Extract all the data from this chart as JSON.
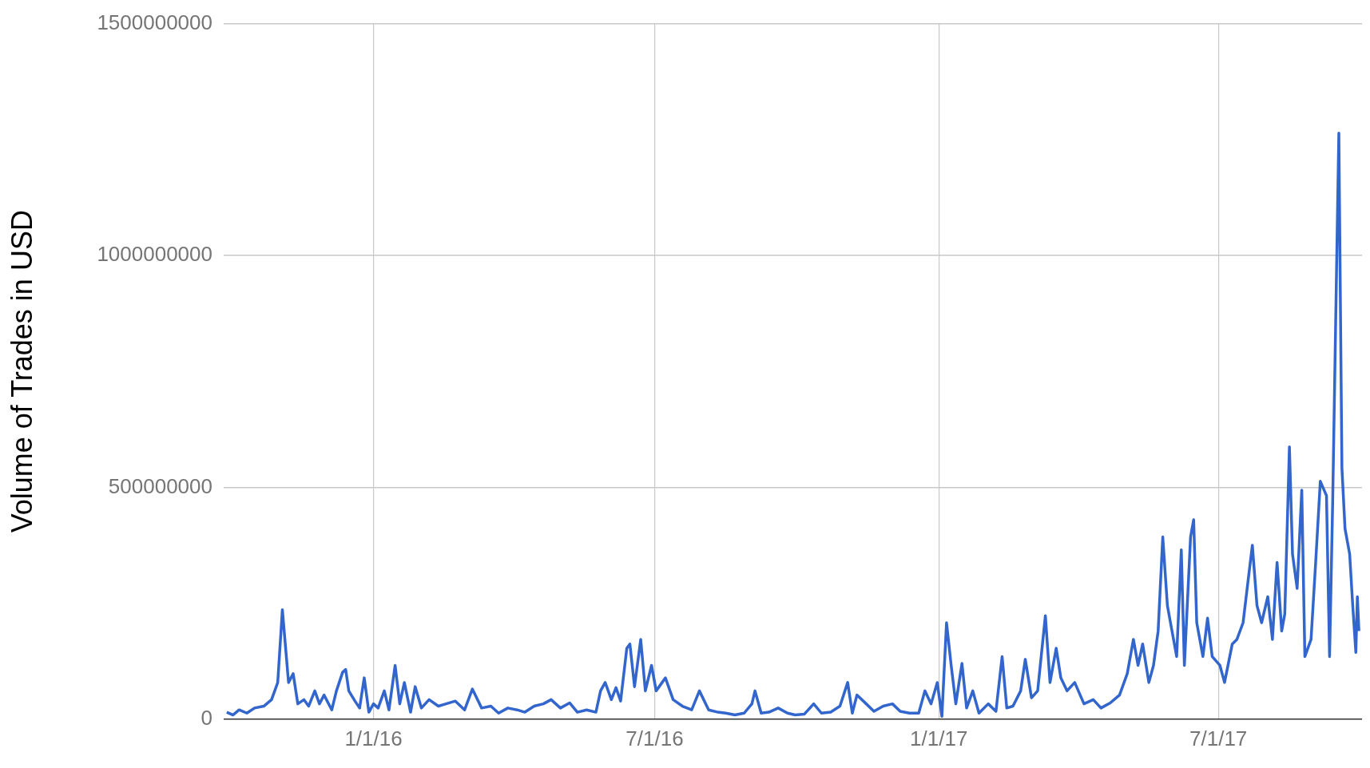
{
  "chart_data": {
    "type": "line",
    "ylabel": "Volume of Trades in USD",
    "grid": true,
    "legend": false,
    "marker": "none",
    "line_style": "solid",
    "xlim": [
      "2015-09-26",
      "2017-10-02"
    ],
    "xticks": [
      {
        "value": "2016-01-01",
        "label": "1/1/16"
      },
      {
        "value": "2016-07-01",
        "label": "7/1/16"
      },
      {
        "value": "2017-01-01",
        "label": "1/1/17"
      },
      {
        "value": "2017-07-01",
        "label": "7/1/17"
      }
    ],
    "ylim": [
      0,
      1500000000
    ],
    "yticks": [
      0,
      500000000,
      1000000000,
      1500000000
    ],
    "series": [
      {
        "color": "#3366cc",
        "x": [
          "2015-09-28",
          "2015-10-02",
          "2015-10-06",
          "2015-10-11",
          "2015-10-16",
          "2015-10-22",
          "2015-10-27",
          "2015-10-31",
          "2015-11-03",
          "2015-11-07",
          "2015-11-10",
          "2015-11-13",
          "2015-11-17",
          "2015-11-20",
          "2015-11-24",
          "2015-11-27",
          "2015-11-30",
          "2015-12-05",
          "2015-12-08",
          "2015-12-12",
          "2015-12-14",
          "2015-12-16",
          "2015-12-20",
          "2015-12-23",
          "2015-12-26",
          "2015-12-29",
          "2016-01-01",
          "2016-01-04",
          "2016-01-08",
          "2016-01-11",
          "2016-01-15",
          "2016-01-18",
          "2016-01-21",
          "2016-01-25",
          "2016-01-28",
          "2016-02-01",
          "2016-02-06",
          "2016-02-12",
          "2016-02-17",
          "2016-02-23",
          "2016-02-29",
          "2016-03-05",
          "2016-03-11",
          "2016-03-17",
          "2016-03-22",
          "2016-03-28",
          "2016-04-03",
          "2016-04-08",
          "2016-04-14",
          "2016-04-20",
          "2016-04-25",
          "2016-05-01",
          "2016-05-07",
          "2016-05-12",
          "2016-05-18",
          "2016-05-24",
          "2016-05-27",
          "2016-05-30",
          "2016-06-03",
          "2016-06-06",
          "2016-06-09",
          "2016-06-13",
          "2016-06-15",
          "2016-06-18",
          "2016-06-22",
          "2016-06-25",
          "2016-06-29",
          "2016-07-02",
          "2016-07-08",
          "2016-07-13",
          "2016-07-19",
          "2016-07-25",
          "2016-07-30",
          "2016-08-05",
          "2016-08-11",
          "2016-08-16",
          "2016-08-22",
          "2016-08-28",
          "2016-09-02",
          "2016-09-04",
          "2016-09-08",
          "2016-09-13",
          "2016-09-19",
          "2016-09-25",
          "2016-09-30",
          "2016-10-06",
          "2016-10-12",
          "2016-10-17",
          "2016-10-23",
          "2016-10-29",
          "2016-11-03",
          "2016-11-06",
          "2016-11-09",
          "2016-11-15",
          "2016-11-20",
          "2016-11-26",
          "2016-12-02",
          "2016-12-07",
          "2016-12-13",
          "2016-12-19",
          "2016-12-23",
          "2016-12-27",
          "2016-12-31",
          "2017-01-03",
          "2017-01-06",
          "2017-01-09",
          "2017-01-12",
          "2017-01-16",
          "2017-01-19",
          "2017-01-23",
          "2017-01-27",
          "2017-02-02",
          "2017-02-07",
          "2017-02-11",
          "2017-02-14",
          "2017-02-18",
          "2017-02-23",
          "2017-02-26",
          "2017-03-02",
          "2017-03-06",
          "2017-03-11",
          "2017-03-14",
          "2017-03-18",
          "2017-03-21",
          "2017-03-25",
          "2017-03-30",
          "2017-04-05",
          "2017-04-11",
          "2017-04-16",
          "2017-04-22",
          "2017-04-28",
          "2017-05-03",
          "2017-05-07",
          "2017-05-10",
          "2017-05-13",
          "2017-05-17",
          "2017-05-20",
          "2017-05-23",
          "2017-05-26",
          "2017-05-29",
          "2017-05-31",
          "2017-06-04",
          "2017-06-07",
          "2017-06-09",
          "2017-06-13",
          "2017-06-15",
          "2017-06-17",
          "2017-06-21",
          "2017-06-24",
          "2017-06-27",
          "2017-07-02",
          "2017-07-05",
          "2017-07-10",
          "2017-07-13",
          "2017-07-17",
          "2017-07-20",
          "2017-07-23",
          "2017-07-26",
          "2017-07-29",
          "2017-08-02",
          "2017-08-05",
          "2017-08-08",
          "2017-08-11",
          "2017-08-13",
          "2017-08-16",
          "2017-08-18",
          "2017-08-21",
          "2017-08-24",
          "2017-08-26",
          "2017-08-30",
          "2017-09-02",
          "2017-09-05",
          "2017-09-09",
          "2017-09-11",
          "2017-09-13",
          "2017-09-17",
          "2017-09-19",
          "2017-09-21",
          "2017-09-24",
          "2017-09-26",
          "2017-09-28",
          "2017-09-29",
          "2017-09-30"
        ],
        "values": [
          15000000,
          9000000,
          20000000,
          13000000,
          24000000,
          28000000,
          42000000,
          79000000,
          236000000,
          79000000,
          98000000,
          33000000,
          42000000,
          28000000,
          61000000,
          33000000,
          52000000,
          20000000,
          61000000,
          101000000,
          107000000,
          61000000,
          39000000,
          24000000,
          89000000,
          15000000,
          33000000,
          24000000,
          61000000,
          20000000,
          116000000,
          33000000,
          79000000,
          15000000,
          70000000,
          24000000,
          42000000,
          28000000,
          33000000,
          39000000,
          20000000,
          65000000,
          24000000,
          28000000,
          13000000,
          24000000,
          20000000,
          15000000,
          28000000,
          33000000,
          42000000,
          24000000,
          35000000,
          15000000,
          20000000,
          15000000,
          61000000,
          79000000,
          42000000,
          68000000,
          39000000,
          153000000,
          162000000,
          70000000,
          172000000,
          61000000,
          116000000,
          61000000,
          89000000,
          42000000,
          28000000,
          20000000,
          61000000,
          20000000,
          15000000,
          13000000,
          9000000,
          13000000,
          33000000,
          61000000,
          13000000,
          15000000,
          24000000,
          13000000,
          9000000,
          11000000,
          33000000,
          13000000,
          15000000,
          28000000,
          79000000,
          13000000,
          52000000,
          33000000,
          17000000,
          28000000,
          33000000,
          17000000,
          13000000,
          13000000,
          61000000,
          33000000,
          79000000,
          6000000,
          208000000,
          116000000,
          33000000,
          120000000,
          24000000,
          61000000,
          13000000,
          33000000,
          17000000,
          135000000,
          24000000,
          28000000,
          61000000,
          129000000,
          46000000,
          61000000,
          223000000,
          79000000,
          153000000,
          89000000,
          61000000,
          79000000,
          33000000,
          42000000,
          24000000,
          35000000,
          52000000,
          98000000,
          172000000,
          116000000,
          162000000,
          79000000,
          116000000,
          190000000,
          393000000,
          245000000,
          208000000,
          135000000,
          365000000,
          116000000,
          393000000,
          430000000,
          208000000,
          135000000,
          218000000,
          135000000,
          116000000,
          79000000,
          162000000,
          172000000,
          208000000,
          292000000,
          375000000,
          245000000,
          208000000,
          264000000,
          172000000,
          338000000,
          190000000,
          227000000,
          587000000,
          356000000,
          282000000,
          494000000,
          135000000,
          172000000,
          338000000,
          513000000,
          482000000,
          135000000,
          467000000,
          1264000000,
          541000000,
          411000000,
          356000000,
          245000000,
          144000000,
          264000000,
          190000000
        ]
      }
    ]
  }
}
